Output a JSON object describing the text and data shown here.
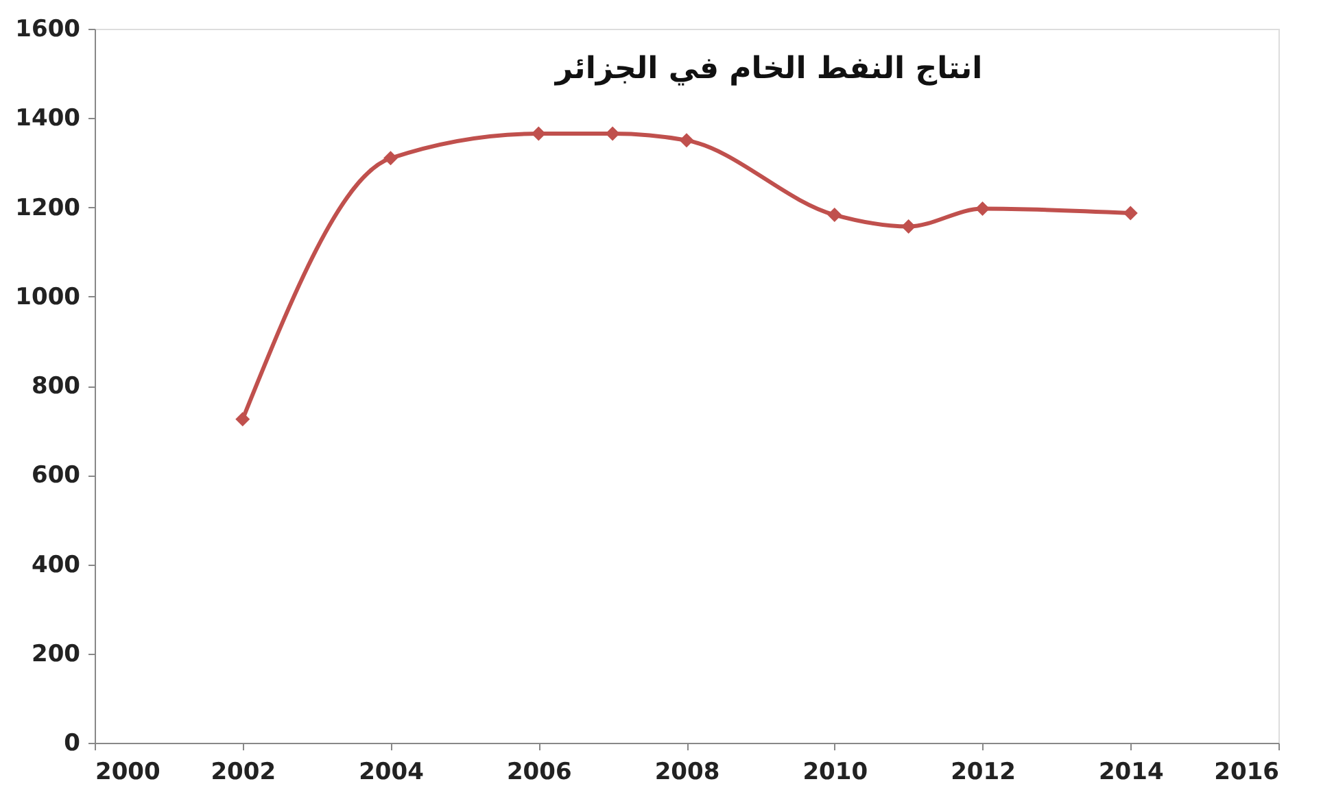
{
  "chart_data": {
    "type": "line",
    "title": "انتاج النفط الخام في الجزائر",
    "x": [
      2002,
      2004,
      2006,
      2007,
      2008,
      2010,
      2011,
      2012,
      2014
    ],
    "series": [
      {
        "color": "#c0504d",
        "values": [
          725,
          1310,
          1365,
          1365,
          1350,
          1183,
          1157,
          1197,
          1187
        ]
      }
    ],
    "xlim": [
      2000,
      2016
    ],
    "xticks": [
      2000,
      2002,
      2004,
      2006,
      2008,
      2010,
      2012,
      2014,
      2016
    ],
    "ylim": [
      0,
      1600
    ],
    "yticks": [
      0,
      200,
      400,
      600,
      800,
      1000,
      1200,
      1400,
      1600
    ],
    "grid": false,
    "legend": false,
    "marker": "diamond",
    "line_style": "solid"
  }
}
